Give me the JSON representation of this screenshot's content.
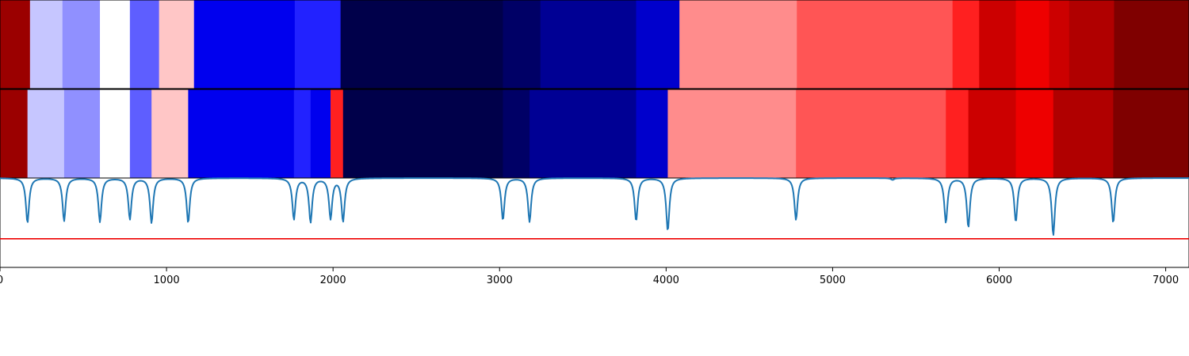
{
  "chart_data": [
    {
      "type": "heatmap",
      "title": "",
      "xlim": [
        0,
        7140
      ],
      "colormap": "seismic",
      "segments": [
        {
          "start": 0,
          "end": 180,
          "color": "#9b0000"
        },
        {
          "start": 180,
          "end": 375,
          "color": "#c6c6ff"
        },
        {
          "start": 375,
          "end": 600,
          "color": "#9090ff"
        },
        {
          "start": 600,
          "end": 780,
          "color": "#ffffff"
        },
        {
          "start": 780,
          "end": 955,
          "color": "#5e5eff"
        },
        {
          "start": 955,
          "end": 1165,
          "color": "#ffc6c6"
        },
        {
          "start": 1165,
          "end": 1770,
          "color": "#0000ee"
        },
        {
          "start": 1770,
          "end": 2045,
          "color": "#2222ff"
        },
        {
          "start": 2045,
          "end": 3020,
          "color": "#00004a"
        },
        {
          "start": 3020,
          "end": 3245,
          "color": "#000066"
        },
        {
          "start": 3245,
          "end": 3820,
          "color": "#000094"
        },
        {
          "start": 3820,
          "end": 4080,
          "color": "#0000cc"
        },
        {
          "start": 4080,
          "end": 4785,
          "color": "#ff8c8c"
        },
        {
          "start": 4785,
          "end": 5720,
          "color": "#ff5555"
        },
        {
          "start": 5720,
          "end": 5880,
          "color": "#ff2020"
        },
        {
          "start": 5880,
          "end": 6100,
          "color": "#cc0000"
        },
        {
          "start": 6100,
          "end": 6300,
          "color": "#ee0000"
        },
        {
          "start": 6300,
          "end": 6420,
          "color": "#cc0000"
        },
        {
          "start": 6420,
          "end": 6690,
          "color": "#b00000"
        },
        {
          "start": 6690,
          "end": 7140,
          "color": "#7f0000"
        }
      ]
    },
    {
      "type": "heatmap",
      "title": "",
      "xlim": [
        0,
        7140
      ],
      "colormap": "seismic",
      "segments": [
        {
          "start": 0,
          "end": 165,
          "color": "#9b0000"
        },
        {
          "start": 165,
          "end": 385,
          "color": "#c6c6ff"
        },
        {
          "start": 385,
          "end": 600,
          "color": "#9090ff"
        },
        {
          "start": 600,
          "end": 780,
          "color": "#ffffff"
        },
        {
          "start": 780,
          "end": 910,
          "color": "#5e5eff"
        },
        {
          "start": 910,
          "end": 1130,
          "color": "#ffc6c6"
        },
        {
          "start": 1130,
          "end": 1765,
          "color": "#0000ee"
        },
        {
          "start": 1765,
          "end": 1865,
          "color": "#2222ff"
        },
        {
          "start": 1865,
          "end": 1985,
          "color": "#0000ee"
        },
        {
          "start": 1985,
          "end": 2060,
          "color": "#ff2020"
        },
        {
          "start": 2060,
          "end": 3020,
          "color": "#00004a"
        },
        {
          "start": 3020,
          "end": 3180,
          "color": "#000066"
        },
        {
          "start": 3180,
          "end": 3820,
          "color": "#000094"
        },
        {
          "start": 3820,
          "end": 4010,
          "color": "#0000cc"
        },
        {
          "start": 4010,
          "end": 4780,
          "color": "#ff8c8c"
        },
        {
          "start": 4780,
          "end": 5680,
          "color": "#ff5555"
        },
        {
          "start": 5680,
          "end": 5815,
          "color": "#ff2020"
        },
        {
          "start": 5815,
          "end": 6100,
          "color": "#cc0000"
        },
        {
          "start": 6100,
          "end": 6325,
          "color": "#ee0000"
        },
        {
          "start": 6325,
          "end": 6685,
          "color": "#b00000"
        },
        {
          "start": 6685,
          "end": 7140,
          "color": "#7f0000"
        }
      ]
    },
    {
      "type": "line",
      "title": "",
      "xlabel": "",
      "ylabel": "",
      "xlim": [
        0,
        7140
      ],
      "ylim": [
        -1.0,
        0.0
      ],
      "x_ticks": [
        0,
        1000,
        2000,
        3000,
        4000,
        5000,
        6000,
        7000
      ],
      "x_tick_labels": [
        "0",
        "1000",
        "2000",
        "3000",
        "4000",
        "5000",
        "6000",
        "7000"
      ],
      "grid": false,
      "series": [
        {
          "color": "#1f77b4",
          "baseline": 0.0,
          "dips": [
            {
              "x": 165,
              "depth": -0.5
            },
            {
              "x": 385,
              "depth": -0.48
            },
            {
              "x": 600,
              "depth": -0.49
            },
            {
              "x": 780,
              "depth": -0.46
            },
            {
              "x": 910,
              "depth": -0.5
            },
            {
              "x": 1130,
              "depth": -0.5
            },
            {
              "x": 1765,
              "depth": -0.46
            },
            {
              "x": 1865,
              "depth": -0.49
            },
            {
              "x": 1985,
              "depth": -0.45
            },
            {
              "x": 2060,
              "depth": -0.48
            },
            {
              "x": 3020,
              "depth": -0.47
            },
            {
              "x": 3180,
              "depth": -0.49
            },
            {
              "x": 3820,
              "depth": -0.48
            },
            {
              "x": 4010,
              "depth": -0.59
            },
            {
              "x": 4780,
              "depth": -0.47
            },
            {
              "x": 5360,
              "depth": -0.02
            },
            {
              "x": 5680,
              "depth": -0.5
            },
            {
              "x": 5815,
              "depth": -0.55
            },
            {
              "x": 6100,
              "depth": -0.49
            },
            {
              "x": 6325,
              "depth": -0.64
            },
            {
              "x": 6685,
              "depth": -0.5
            }
          ]
        }
      ],
      "threshold": {
        "y": -0.68,
        "color": "#ee0000"
      }
    }
  ]
}
